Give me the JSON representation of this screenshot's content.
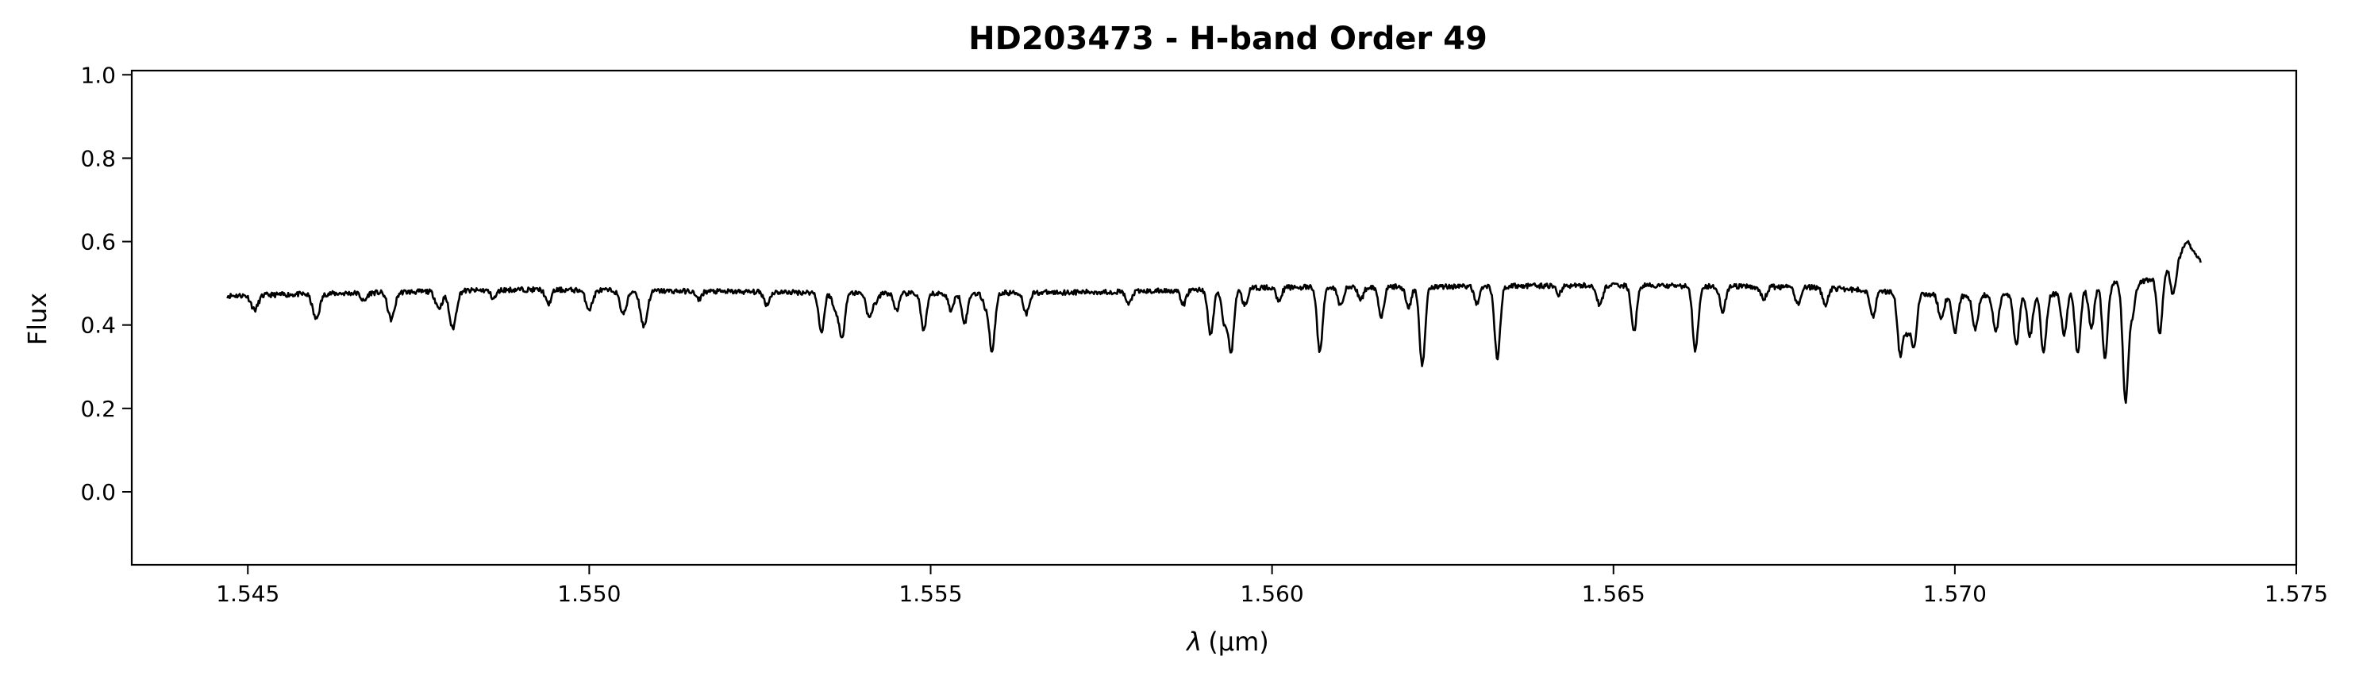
{
  "chart_data": {
    "type": "line",
    "title": "HD203473 - H-band Order 49",
    "xlabel": "λ",
    "xlabel_unit": "(μm)",
    "ylabel": "Flux",
    "xlim": [
      1.5433,
      1.575
    ],
    "ylim": [
      -0.175,
      1.01
    ],
    "grid": false,
    "xticks": [
      1.545,
      1.55,
      1.555,
      1.56,
      1.565,
      1.57,
      1.575
    ],
    "xtick_labels": [
      "1.545",
      "1.550",
      "1.555",
      "1.560",
      "1.565",
      "1.570",
      "1.575"
    ],
    "yticks": [
      0.0,
      0.2,
      0.4,
      0.6,
      0.8,
      1.0
    ],
    "ytick_labels": [
      "0.0",
      "0.2",
      "0.4",
      "0.6",
      "0.8",
      "1.0"
    ],
    "line_color": "#000000",
    "series": [
      {
        "x_start": 1.5447,
        "x_end": 1.5736,
        "continuum": [
          [
            1.5447,
            0.47
          ],
          [
            1.549,
            0.485
          ],
          [
            1.555,
            0.475
          ],
          [
            1.558,
            0.48
          ],
          [
            1.56,
            0.49
          ],
          [
            1.565,
            0.495
          ],
          [
            1.568,
            0.49
          ],
          [
            1.57,
            0.47
          ],
          [
            1.5715,
            0.475
          ],
          [
            1.5722,
            0.5
          ],
          [
            1.5727,
            0.5
          ],
          [
            1.573,
            0.52
          ],
          [
            1.5733,
            0.57
          ],
          [
            1.5734,
            0.6
          ],
          [
            1.5735,
            0.58
          ],
          [
            1.5736,
            0.55
          ]
        ],
        "absorption_lines": [
          [
            1.5451,
            0.035,
            5e-05
          ],
          [
            1.546,
            0.06,
            5e-05
          ],
          [
            1.5467,
            0.02,
            4e-05
          ],
          [
            1.5471,
            0.065,
            5e-05
          ],
          [
            1.5478,
            0.04,
            5e-05
          ],
          [
            1.548,
            0.09,
            5e-05
          ],
          [
            1.5486,
            0.02,
            4e-05
          ],
          [
            1.5494,
            0.035,
            4e-05
          ],
          [
            1.55,
            0.045,
            5e-05
          ],
          [
            1.5505,
            0.055,
            5e-05
          ],
          [
            1.5508,
            0.085,
            5e-05
          ],
          [
            1.5516,
            0.02,
            4e-05
          ],
          [
            1.5526,
            0.03,
            4e-05
          ],
          [
            1.5536,
            0.04,
            4e-05
          ],
          [
            1.5542,
            0.02,
            4e-05
          ],
          [
            1.5534,
            0.095,
            4e-05
          ],
          [
            1.5537,
            0.11,
            4e-05
          ],
          [
            1.5541,
            0.06,
            4e-05
          ],
          [
            1.5545,
            0.04,
            4e-05
          ],
          [
            1.5549,
            0.09,
            4e-05
          ],
          [
            1.5553,
            0.04,
            4e-05
          ],
          [
            1.5558,
            0.03,
            4e-05
          ],
          [
            1.5555,
            0.07,
            4e-05
          ],
          [
            1.5559,
            0.14,
            4e-05
          ],
          [
            1.5564,
            0.05,
            4e-05
          ],
          [
            1.5579,
            0.03,
            4e-05
          ],
          [
            1.5587,
            0.035,
            4e-05
          ],
          [
            1.5591,
            0.11,
            4e-05
          ],
          [
            1.5593,
            0.08,
            4e-05
          ],
          [
            1.5594,
            0.15,
            4e-05
          ],
          [
            1.5596,
            0.04,
            4e-05
          ],
          [
            1.5601,
            0.03,
            4e-05
          ],
          [
            1.5607,
            0.155,
            4e-05
          ],
          [
            1.561,
            0.045,
            4e-05
          ],
          [
            1.5613,
            0.03,
            4e-05
          ],
          [
            1.5616,
            0.07,
            4e-05
          ],
          [
            1.562,
            0.05,
            4e-05
          ],
          [
            1.5622,
            0.19,
            4e-05
          ],
          [
            1.563,
            0.04,
            4e-05
          ],
          [
            1.5633,
            0.175,
            4e-05
          ],
          [
            1.5642,
            0.02,
            4e-05
          ],
          [
            1.5648,
            0.05,
            4e-05
          ],
          [
            1.5653,
            0.11,
            4e-05
          ],
          [
            1.5662,
            0.155,
            4e-05
          ],
          [
            1.5666,
            0.06,
            4e-05
          ],
          [
            1.5672,
            0.03,
            4e-05
          ],
          [
            1.5677,
            0.04,
            4e-05
          ],
          [
            1.5681,
            0.04,
            4e-05
          ],
          [
            1.5688,
            0.06,
            4e-05
          ],
          [
            1.5692,
            0.15,
            4e-05
          ],
          [
            1.5693,
            0.09,
            4e-05
          ],
          [
            1.5694,
            0.13,
            4e-05
          ],
          [
            1.5698,
            0.06,
            4e-05
          ],
          [
            1.57,
            0.09,
            4e-05
          ],
          [
            1.5703,
            0.08,
            4e-05
          ],
          [
            1.5706,
            0.09,
            4e-05
          ],
          [
            1.5709,
            0.12,
            4e-05
          ],
          [
            1.5711,
            0.1,
            4e-05
          ],
          [
            1.5713,
            0.14,
            4e-05
          ],
          [
            1.5716,
            0.1,
            4e-05
          ],
          [
            1.5718,
            0.155,
            4e-05
          ],
          [
            1.572,
            0.1,
            4e-05
          ],
          [
            1.5722,
            0.18,
            4e-05
          ],
          [
            1.5725,
            0.28,
            4e-05
          ],
          [
            1.5726,
            0.07,
            4e-05
          ],
          [
            1.573,
            0.14,
            4e-05
          ],
          [
            1.5732,
            0.08,
            4e-05
          ]
        ]
      }
    ]
  }
}
